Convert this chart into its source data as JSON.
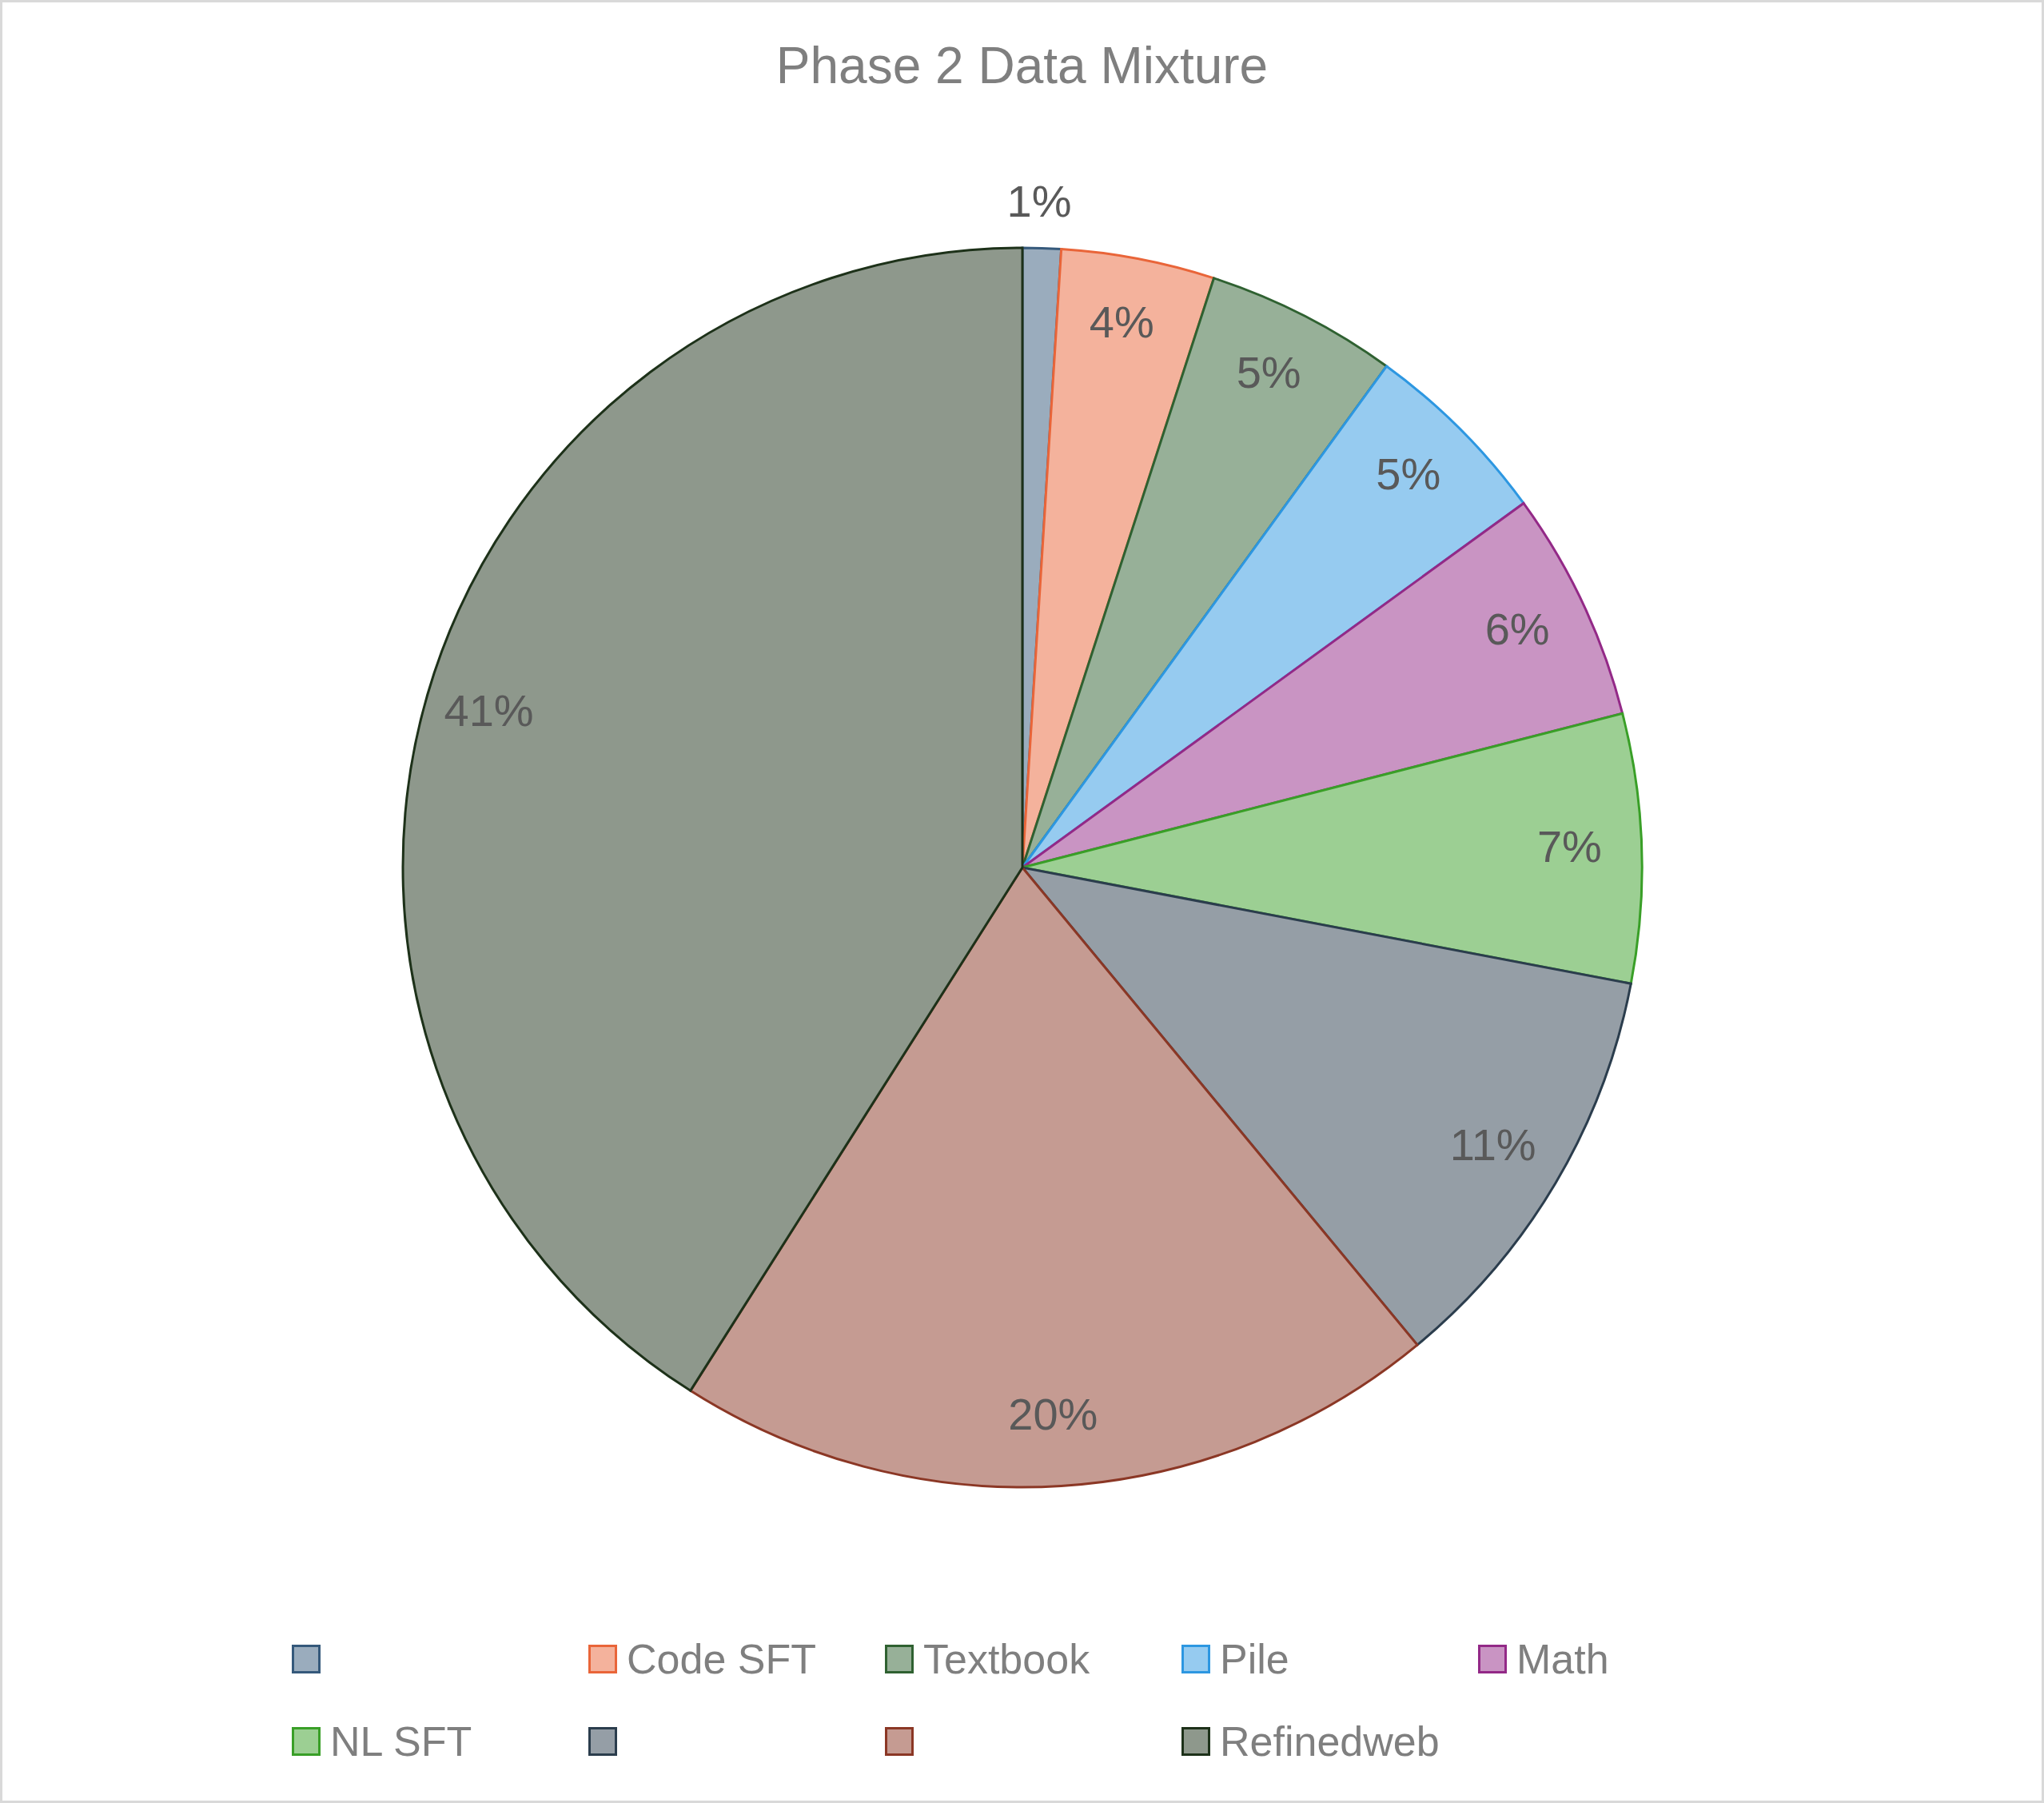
{
  "chart_data": {
    "type": "pie",
    "title": "Phase 2 Data Mixture",
    "categories": [
      null,
      "Code SFT",
      "Textbook",
      "Pile",
      "Math",
      "NL SFT",
      null,
      null,
      "Refinedweb"
    ],
    "values": [
      1,
      4,
      5,
      5,
      6,
      7,
      11,
      20,
      41
    ],
    "colors": [
      "#9aacbd",
      "#f4b29c",
      "#97b098",
      "#96cbf0",
      "#c994c3",
      "#9ccf93",
      "#959ea6",
      "#c59b92",
      "#8e988c"
    ],
    "value_labels": [
      "1%",
      "4%",
      "5%",
      "5%",
      "6%",
      "7%",
      "11%",
      "20%",
      "41%"
    ],
    "legend": "bottom"
  }
}
